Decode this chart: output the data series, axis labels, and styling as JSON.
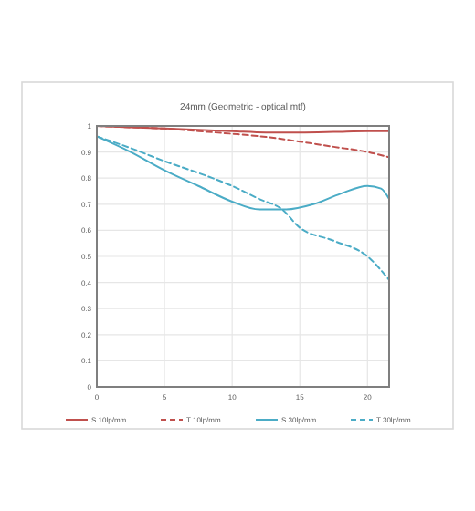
{
  "chart_data": {
    "type": "line",
    "title": "24mm  (Geometric - optical mtf)",
    "xlim": [
      0,
      21.6
    ],
    "xticks": [
      0,
      5,
      10,
      15,
      20
    ],
    "ylim": [
      0,
      1
    ],
    "yticks": [
      0,
      0.1,
      0.2,
      0.3,
      0.4,
      0.5,
      0.6,
      0.7,
      0.8,
      0.9,
      1
    ],
    "grid": true,
    "legend": "bottom",
    "series": [
      {
        "name": "S 10lp/mm",
        "color": "#c0504d",
        "line_style": "solid",
        "x": [
          0,
          2.5,
          5,
          7.5,
          10,
          12.5,
          15,
          17.5,
          20,
          21.6
        ],
        "values": [
          1,
          0.995,
          0.99,
          0.985,
          0.98,
          0.975,
          0.975,
          0.977,
          0.98,
          0.98
        ]
      },
      {
        "name": "T 10lp/mm",
        "color": "#c0504d",
        "line_style": "dashed",
        "x": [
          0,
          2.5,
          5,
          7.5,
          10,
          12.5,
          15,
          17.5,
          20,
          21.6
        ],
        "values": [
          1,
          0.995,
          0.99,
          0.98,
          0.97,
          0.958,
          0.94,
          0.92,
          0.9,
          0.88
        ]
      },
      {
        "name": "S 30lp/mm",
        "color": "#4bacc6",
        "line_style": "solid",
        "x": [
          0,
          2.5,
          5,
          7.5,
          10,
          12,
          14,
          16,
          18,
          20,
          21,
          21.6
        ],
        "values": [
          0.96,
          0.9,
          0.83,
          0.77,
          0.71,
          0.68,
          0.68,
          0.7,
          0.74,
          0.77,
          0.76,
          0.72
        ]
      },
      {
        "name": "T 30lp/mm",
        "color": "#4bacc6",
        "line_style": "dashed",
        "x": [
          0,
          2.5,
          5,
          7.5,
          10,
          12,
          13.7,
          15,
          17.5,
          20,
          21.6
        ],
        "values": [
          0.96,
          0.915,
          0.865,
          0.82,
          0.77,
          0.72,
          0.68,
          0.61,
          0.56,
          0.5,
          0.41
        ]
      }
    ]
  }
}
